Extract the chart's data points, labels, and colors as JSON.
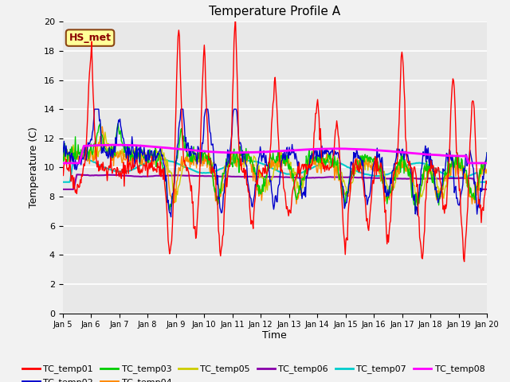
{
  "title": "Temperature Profile A",
  "xlabel": "Time",
  "ylabel": "Temperature (C)",
  "ylim": [
    0,
    20
  ],
  "annotation_label": "HS_met",
  "series_colors": {
    "TC_temp01": "#FF0000",
    "TC_temp02": "#0000CC",
    "TC_temp03": "#00CC00",
    "TC_temp04": "#FF8800",
    "TC_temp05": "#CCCC00",
    "TC_temp06": "#8800AA",
    "TC_temp07": "#00CCCC",
    "TC_temp08": "#FF00FF"
  },
  "x_tick_labels": [
    "Jan 5",
    "Jan 6",
    "Jan 7",
    "Jan 8",
    "Jan 9",
    "Jan 10",
    "Jan 11",
    "Jan 12",
    "Jan 13",
    "Jan 14",
    "Jan 15",
    "Jan 16",
    "Jan 17",
    "Jan 18",
    "Jan 19",
    "Jan 20"
  ],
  "ytick_labels": [
    "0",
    "2",
    "4",
    "6",
    "8",
    "10",
    "12",
    "14",
    "16",
    "18",
    "20"
  ],
  "ytick_vals": [
    0,
    2,
    4,
    6,
    8,
    10,
    12,
    14,
    16,
    18,
    20
  ],
  "bg_color": "#E8E8E8",
  "fig_bg": "#F2F2F2",
  "grid_color": "#FFFFFF",
  "linewidth": 1.0
}
